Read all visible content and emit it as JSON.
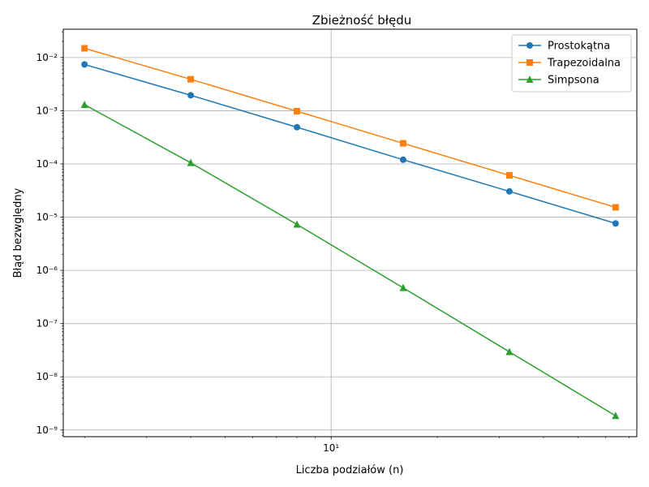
{
  "chart_data": {
    "type": "line",
    "title": "Zbieżność błędu",
    "xlabel": "Liczba podziałów (n)",
    "ylabel": "Błąd bezwględny",
    "xscale": "log",
    "yscale": "log",
    "xlim": [
      1.7411,
      73.5167
    ],
    "ylim": [
      7.5e-10,
      0.034
    ],
    "grid": true,
    "legend_loc": "upper right",
    "x": [
      2,
      4,
      8,
      16,
      32,
      64
    ],
    "xticks": [
      {
        "value": 10,
        "label": "10¹"
      }
    ],
    "yticks": [
      {
        "value": 1e-09,
        "label": "10⁻⁹"
      },
      {
        "value": 1e-08,
        "label": "10⁻⁸"
      },
      {
        "value": 1e-07,
        "label": "10⁻⁷"
      },
      {
        "value": 1e-06,
        "label": "10⁻⁶"
      },
      {
        "value": 1e-05,
        "label": "10⁻⁵"
      },
      {
        "value": 0.0001,
        "label": "10⁻⁴"
      },
      {
        "value": 0.001,
        "label": "10⁻³"
      },
      {
        "value": 0.01,
        "label": "10⁻²"
      }
    ],
    "series": [
      {
        "name": "Prostokątna",
        "color": "#1f77b4",
        "marker": "circle",
        "values": [
          0.0074,
          0.00195,
          0.00049,
          0.00012,
          3.05e-05,
          7.63e-06
        ]
      },
      {
        "name": "Trapezoidalna",
        "color": "#ff7f0e",
        "marker": "square",
        "values": [
          0.0149,
          0.0039,
          0.00098,
          0.000244,
          6.1e-05,
          1.53e-05
        ]
      },
      {
        "name": "Simpsona",
        "color": "#2ca02c",
        "marker": "triangle",
        "values": [
          0.0013,
          0.000105,
          7.3e-06,
          4.7e-07,
          2.95e-08,
          1.85e-09
        ]
      }
    ]
  }
}
